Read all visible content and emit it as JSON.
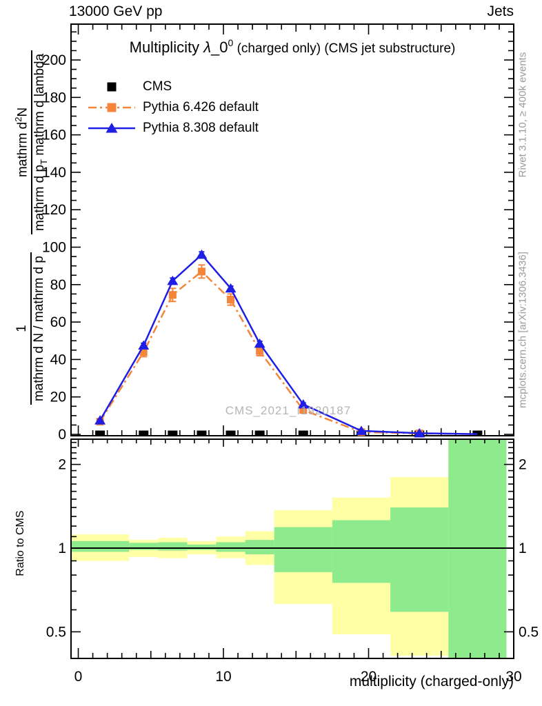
{
  "header": {
    "left": "13000 GeV pp",
    "right": "Jets"
  },
  "title": {
    "pre": "Multiplicity ",
    "lambda": "λ",
    "sub": "_0",
    "sup": "0",
    "suffix": " (charged only) (CMS jet substructure)"
  },
  "legend": {
    "items": [
      {
        "label": "CMS",
        "marker": "square",
        "line": "none",
        "color": "#000000"
      },
      {
        "label": "Pythia 6.426 default",
        "marker": "square",
        "line": "dashdot",
        "color": "#f5853b"
      },
      {
        "label": "Pythia 8.308 default",
        "marker": "triangle",
        "line": "solid",
        "color": "#1e1ee4"
      }
    ]
  },
  "y_axis_label": {
    "frac1_num": "1",
    "frac1_den": "mathrm d N / mathrm d p",
    "frac2_num_pre": "mathrm d",
    "frac2_num_sup": "2",
    "frac2_num_post": "N",
    "frac2_den_pre": "mathrm d p",
    "frac2_den_sub": "T",
    "frac2_den_post": " mathrm d lambda"
  },
  "ratio_panel": {
    "label": "Ratio to CMS",
    "tick_labels": [
      "2",
      "1",
      "0.5"
    ]
  },
  "x_axis": {
    "label": "multiplicity (charged-only)"
  },
  "watermark": "CMS_2021_I1920187",
  "side_notes": {
    "top": "Rivet 3.1.10, ≥ 400k events",
    "bottom": "mcplots.cern.ch [arXiv:1306.3436]"
  },
  "chart_data": {
    "type": "line",
    "title": "Multiplicity λ_0^0 (charged only) (CMS jet substructure)",
    "xlabel": "multiplicity (charged-only)",
    "ylabel": "1/(mathrm d N / mathrm d p) · mathrm d²N/(mathrm d p_T mathrm d lambda)",
    "xlim": [
      -0.5,
      30
    ],
    "ylim": [
      0,
      219
    ],
    "x_major_ticks": [
      0,
      10,
      20,
      30
    ],
    "y_major_ticks": [
      0,
      20,
      40,
      60,
      80,
      100,
      120,
      140,
      160,
      180,
      200
    ],
    "ratio_scale": "log",
    "ratio_lim": [
      0.4,
      2.47
    ],
    "ratio_major_ticks": [
      2,
      1,
      0.5
    ],
    "ratio_minor_ticks": [
      0.6,
      0.7,
      0.8,
      0.9,
      1.1,
      1.2,
      1.3,
      1.4,
      1.5,
      1.6,
      1.7,
      1.8,
      1.9,
      2.1,
      2.2,
      2.3,
      2.4
    ],
    "bin_edges": [
      -0.5,
      3.5,
      5.5,
      7.5,
      9.5,
      11.5,
      13.5,
      17.5,
      21.5,
      25.5,
      29.5
    ],
    "bin_centers": [
      1.5,
      4.5,
      6.5,
      8.5,
      10.5,
      12.5,
      15.5,
      19.5,
      23.5,
      27.5
    ],
    "series": [
      {
        "name": "CMS",
        "color": "#000000",
        "marker": "square",
        "line": "none",
        "values": [
          1.3,
          1.3,
          1.3,
          1.3,
          1.3,
          1.3,
          1.3,
          1.3,
          1.3,
          1.3
        ]
      },
      {
        "name": "Pythia 6.426 default",
        "color": "#f5853b",
        "marker": "square",
        "line": "dashdot",
        "values": [
          6.8,
          44,
          74.5,
          87,
          72,
          44.5,
          13,
          1.2,
          0.5,
          0.1
        ],
        "errors": [
          0.5,
          2.5,
          3.5,
          3.5,
          3.0,
          2.5,
          1.5,
          0.3,
          0.2,
          0.1
        ]
      },
      {
        "name": "Pythia 8.308 default",
        "color": "#1e1ee4",
        "marker": "triangle",
        "line": "solid",
        "values": [
          7.5,
          47.5,
          82,
          96,
          78,
          48.5,
          16,
          1.9,
          0.6,
          0.15
        ],
        "errors": [
          0.4,
          1.2,
          1.5,
          1.5,
          1.2,
          1.2,
          0.8,
          0.2,
          0.1,
          0.05
        ]
      }
    ],
    "ratio_bands": {
      "yellow": [
        [
          0.9,
          1.12
        ],
        [
          0.93,
          1.07
        ],
        [
          0.92,
          1.09
        ],
        [
          0.95,
          1.06
        ],
        [
          0.92,
          1.1
        ],
        [
          0.87,
          1.15
        ],
        [
          0.63,
          1.37
        ],
        [
          0.49,
          1.52
        ],
        [
          0.41,
          1.8
        ],
        [
          0.4,
          2.47
        ]
      ],
      "green": [
        [
          0.97,
          1.06
        ],
        [
          0.985,
          1.045
        ],
        [
          0.98,
          1.05
        ],
        [
          0.985,
          1.03
        ],
        [
          0.97,
          1.05
        ],
        [
          0.95,
          1.07
        ],
        [
          0.82,
          1.19
        ],
        [
          0.75,
          1.26
        ],
        [
          0.59,
          1.4
        ],
        [
          0.4,
          2.47
        ]
      ]
    },
    "band_colors": {
      "yellow": "#ffffa6",
      "green": "#8deb8d"
    }
  }
}
